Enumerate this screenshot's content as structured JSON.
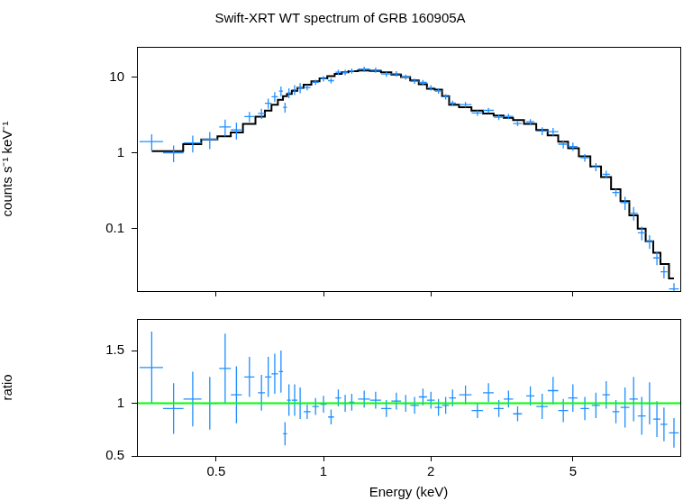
{
  "chart_data": [
    {
      "type": "scatter",
      "title": "Swift-XRT WT spectrum of GRB 160905A",
      "y_label": "counts s⁻¹ keV⁻¹",
      "log": true,
      "grid": false,
      "tick_labels": "y",
      "xlim": [
        0.3,
        10
      ],
      "ylim": [
        0.015,
        25
      ],
      "xticks": [
        0.5,
        1,
        2,
        5
      ],
      "yticks": [
        0.1,
        1,
        10
      ],
      "x": [
        0.33,
        0.38,
        0.43,
        0.48,
        0.53,
        0.57,
        0.62,
        0.67,
        0.7,
        0.73,
        0.76,
        0.78,
        0.8,
        0.83,
        0.86,
        0.9,
        0.95,
        1.0,
        1.05,
        1.1,
        1.15,
        1.2,
        1.3,
        1.4,
        1.5,
        1.6,
        1.7,
        1.8,
        1.9,
        2.0,
        2.1,
        2.2,
        2.3,
        2.5,
        2.7,
        2.9,
        3.1,
        3.3,
        3.5,
        3.8,
        4.1,
        4.4,
        4.7,
        5.0,
        5.4,
        5.8,
        6.2,
        6.6,
        7.0,
        7.4,
        7.8,
        8.2,
        8.6,
        9.0,
        9.6
      ],
      "series": [
        {
          "type": "scatter",
          "marker": "cross",
          "color": "#1f8fff",
          "values": [
            1.41,
            1.0,
            1.35,
            1.5,
            2.19,
            2.0,
            3.0,
            3.3,
            4.5,
            5.5,
            6.5,
            3.98,
            6.18,
            6.8,
            7.2,
            7.27,
            8.54,
            9.5,
            8.96,
            11.55,
            11.5,
            12.02,
            12.69,
            12.36,
            10.93,
            11.02,
            10.0,
            8.82,
            8.48,
            7.21,
            6.53,
            5.49,
            4.52,
            4.32,
            3.35,
            3.63,
            2.95,
            3.02,
            2.43,
            2.57,
            1.94,
            1.9,
            1.3,
            1.21,
            0.86,
            0.65,
            0.52,
            0.3,
            0.22,
            0.16,
            0.088,
            0.068,
            0.041,
            0.027,
            0.016
          ],
          "errors": [
            0.35,
            0.25,
            0.34,
            0.38,
            0.55,
            0.5,
            0.45,
            0.5,
            0.68,
            0.83,
            0.98,
            0.6,
            0.93,
            1.02,
            1.08,
            0.58,
            0.68,
            0.76,
            0.72,
            0.92,
            0.92,
            0.96,
            1.02,
            0.99,
            0.87,
            0.88,
            0.8,
            0.71,
            0.68,
            0.58,
            0.52,
            0.44,
            0.36,
            0.35,
            0.27,
            0.29,
            0.24,
            0.24,
            0.19,
            0.21,
            0.23,
            0.23,
            0.16,
            0.15,
            0.1,
            0.08,
            0.06,
            0.036,
            0.044,
            0.032,
            0.018,
            0.014,
            0.008,
            0.005,
            0.003
          ],
          "x_errors": [
            0.025,
            0.025,
            0.025,
            0.025,
            0.02,
            0.02,
            0.02,
            0.015,
            0.015,
            0.015,
            0.01,
            0.01,
            0.01,
            0.015,
            0.015,
            0.02,
            0.02,
            0.02,
            0.02,
            0.02,
            0.02,
            0.02,
            0.05,
            0.05,
            0.05,
            0.05,
            0.05,
            0.05,
            0.05,
            0.05,
            0.05,
            0.05,
            0.05,
            0.1,
            0.1,
            0.1,
            0.1,
            0.1,
            0.1,
            0.1,
            0.15,
            0.15,
            0.15,
            0.15,
            0.15,
            0.15,
            0.15,
            0.15,
            0.2,
            0.2,
            0.2,
            0.2,
            0.2,
            0.2,
            0.3
          ]
        },
        {
          "type": "line",
          "line_style": "steps",
          "color": "#000000",
          "values": [
            1.05,
            1.05,
            1.3,
            1.5,
            1.65,
            1.85,
            2.4,
            3.0,
            3.6,
            4.3,
            5.0,
            5.6,
            6.0,
            6.6,
            7.2,
            7.9,
            8.8,
            9.6,
            10.3,
            11,
            11.5,
            11.9,
            12.2,
            12.0,
            11.5,
            10.8,
            10.0,
            9.0,
            8.0,
            7.0,
            6.8,
            5.6,
            4.3,
            4.0,
            3.6,
            3.3,
            3.1,
            2.9,
            2.7,
            2.4,
            2.0,
            1.7,
            1.4,
            1.15,
            0.9,
            0.66,
            0.48,
            0.33,
            0.23,
            0.15,
            0.1,
            0.068,
            0.048,
            0.034,
            0.022
          ]
        }
      ]
    },
    {
      "type": "scatter",
      "x_label": "Energy (keV)",
      "y_label": "ratio",
      "log": "x",
      "grid": false,
      "xlim": [
        0.3,
        10
      ],
      "ylim": [
        0.5,
        1.8
      ],
      "xticks": [
        0.5,
        1,
        2,
        5
      ],
      "yticks": [
        0.5,
        1,
        1.5
      ],
      "x": [
        0.33,
        0.38,
        0.43,
        0.48,
        0.53,
        0.57,
        0.62,
        0.67,
        0.7,
        0.73,
        0.76,
        0.78,
        0.8,
        0.83,
        0.86,
        0.9,
        0.95,
        1.0,
        1.05,
        1.1,
        1.15,
        1.2,
        1.3,
        1.4,
        1.5,
        1.6,
        1.7,
        1.8,
        1.9,
        2.0,
        2.1,
        2.2,
        2.3,
        2.5,
        2.7,
        2.9,
        3.1,
        3.3,
        3.5,
        3.8,
        4.1,
        4.4,
        4.7,
        5.0,
        5.4,
        5.8,
        6.2,
        6.6,
        7.0,
        7.4,
        7.8,
        8.2,
        8.6,
        9.0,
        9.6
      ],
      "series": [
        {
          "type": "scatter",
          "marker": "cross",
          "color": "#1f8fff",
          "values": [
            1.34,
            0.95,
            1.04,
            1.0,
            1.33,
            1.08,
            1.25,
            1.1,
            1.25,
            1.28,
            1.3,
            0.71,
            1.03,
            1.03,
            1.0,
            0.92,
            0.97,
            0.99,
            0.87,
            1.05,
            1.0,
            1.01,
            1.04,
            1.03,
            0.95,
            1.02,
            1.0,
            0.98,
            1.06,
            1.03,
            0.96,
            0.98,
            1.05,
            1.08,
            0.93,
            1.1,
            0.95,
            1.04,
            0.9,
            1.07,
            0.97,
            1.12,
            0.93,
            1.05,
            0.95,
            0.98,
            1.08,
            0.92,
            0.96,
            1.04,
            0.88,
            1.0,
            0.85,
            0.8,
            0.72
          ],
          "errors": [
            0.34,
            0.24,
            0.26,
            0.25,
            0.33,
            0.27,
            0.19,
            0.17,
            0.19,
            0.19,
            0.2,
            0.11,
            0.15,
            0.15,
            0.15,
            0.07,
            0.08,
            0.08,
            0.07,
            0.08,
            0.08,
            0.08,
            0.08,
            0.08,
            0.08,
            0.08,
            0.08,
            0.08,
            0.08,
            0.08,
            0.08,
            0.08,
            0.08,
            0.09,
            0.07,
            0.09,
            0.08,
            0.08,
            0.07,
            0.09,
            0.12,
            0.13,
            0.11,
            0.13,
            0.11,
            0.12,
            0.13,
            0.11,
            0.19,
            0.21,
            0.18,
            0.2,
            0.17,
            0.16,
            0.14
          ],
          "x_errors": [
            0.025,
            0.025,
            0.025,
            0.025,
            0.02,
            0.02,
            0.02,
            0.015,
            0.015,
            0.015,
            0.01,
            0.01,
            0.01,
            0.015,
            0.015,
            0.02,
            0.02,
            0.02,
            0.02,
            0.02,
            0.02,
            0.02,
            0.05,
            0.05,
            0.05,
            0.05,
            0.05,
            0.05,
            0.05,
            0.05,
            0.05,
            0.05,
            0.05,
            0.1,
            0.1,
            0.1,
            0.1,
            0.1,
            0.1,
            0.1,
            0.15,
            0.15,
            0.15,
            0.15,
            0.15,
            0.15,
            0.15,
            0.15,
            0.2,
            0.2,
            0.2,
            0.2,
            0.2,
            0.2,
            0.3
          ]
        }
      ],
      "reference_line": {
        "y": 1,
        "color": "#00ff00"
      }
    }
  ]
}
